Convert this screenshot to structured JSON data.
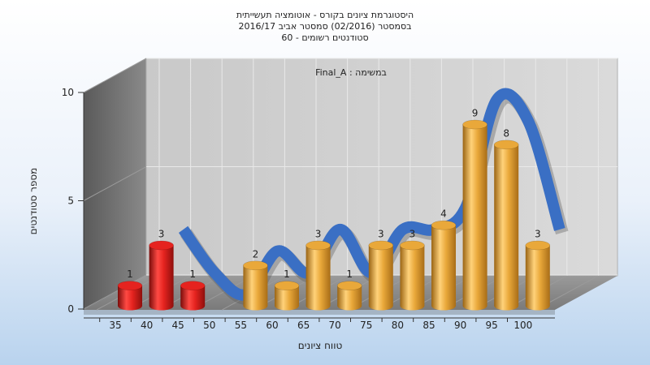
{
  "chart_data": {
    "type": "bar",
    "title_lines": [
      "היסטוגרמת ציונים בקורס - אוטומציה תעשייתית",
      "בסמסטר  (02/2016)  סמסטר אביב 2016/17",
      "סטודנטים רשומים - 60"
    ],
    "annotation": "במשימה : Final_A",
    "xlabel": "טווח ציונים",
    "ylabel": "מספר סטודנטים",
    "categories": [
      "35",
      "40",
      "45",
      "50",
      "55",
      "60",
      "65",
      "70",
      "75",
      "80",
      "85",
      "90",
      "95",
      "100"
    ],
    "series": [
      {
        "values": [
          1,
          3,
          1,
          0,
          2,
          1,
          3,
          1,
          3,
          3,
          4,
          9,
          8,
          3
        ],
        "data_labels": [
          "1",
          "3",
          "1",
          "",
          "2",
          "1",
          "3",
          "1",
          "3",
          "3",
          "4",
          "9",
          "8",
          "3"
        ],
        "bar_colors": [
          "#e5231f",
          "#e5231f",
          "#e5231f",
          "#e5231f",
          "#e9a83a",
          "#e9a83a",
          "#e9a83a",
          "#e9a83a",
          "#e9a83a",
          "#e9a83a",
          "#e9a83a",
          "#e9a83a",
          "#e9a83a",
          "#e9a83a"
        ]
      }
    ],
    "trend_color": "#3a6fc4",
    "y_ticks": [
      "0",
      "5",
      "10"
    ],
    "ylim": [
      0,
      10
    ],
    "grid": true,
    "legend": "none"
  }
}
